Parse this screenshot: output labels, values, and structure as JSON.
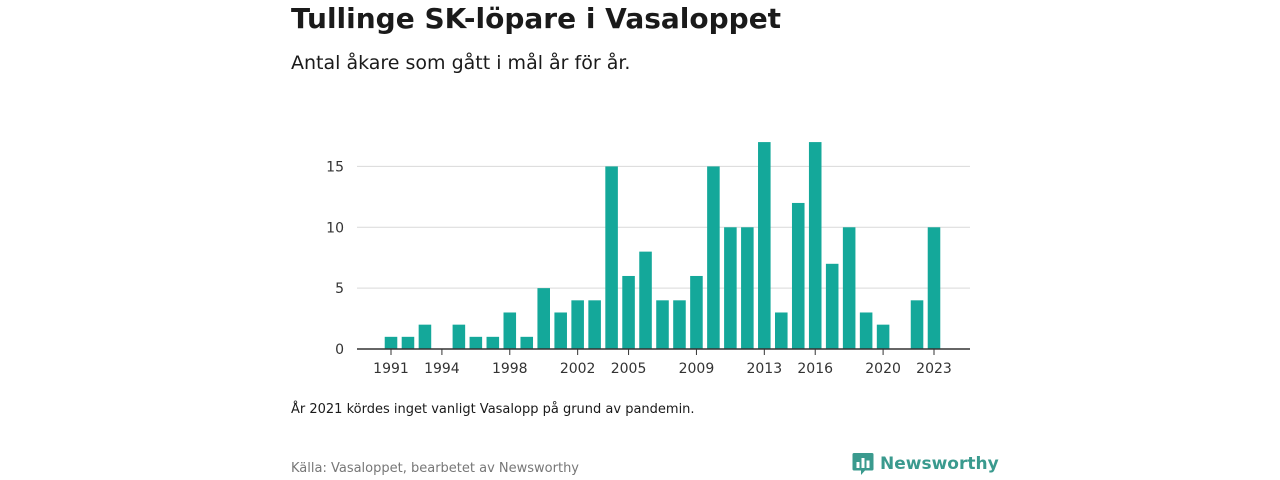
{
  "header": {
    "title": "Tullinge SK-löpare i Vasaloppet",
    "subtitle": "Antal åkare som gått i mål år för år."
  },
  "footer": {
    "note": "År 2021 kördes inget vanligt Vasalopp på grund av pandemin.",
    "source": "Källa: Vasaloppet, bearbetet av Newsworthy",
    "brand": "Newsworthy"
  },
  "colors": {
    "bar": "#14a89a",
    "grid": "#d9d9d9",
    "axis": "#333333",
    "brand": "#3a9a8e"
  },
  "chart_data": {
    "type": "bar",
    "title": "Tullinge SK-löpare i Vasaloppet",
    "subtitle": "Antal åkare som gått i mål år för år.",
    "xlabel": "",
    "ylabel": "",
    "categories": [
      1991,
      1992,
      1993,
      1994,
      1995,
      1996,
      1997,
      1998,
      1999,
      2000,
      2001,
      2002,
      2003,
      2004,
      2005,
      2006,
      2007,
      2008,
      2009,
      2010,
      2011,
      2012,
      2013,
      2014,
      2015,
      2016,
      2017,
      2018,
      2019,
      2020,
      2021,
      2022,
      2023
    ],
    "values": [
      1,
      1,
      2,
      0,
      2,
      1,
      1,
      3,
      1,
      5,
      3,
      4,
      4,
      15,
      6,
      8,
      4,
      4,
      6,
      15,
      10,
      10,
      17,
      3,
      12,
      17,
      7,
      10,
      3,
      2,
      0,
      4,
      10
    ],
    "x_ticks": [
      1991,
      1994,
      1998,
      2002,
      2005,
      2009,
      2013,
      2016,
      2020,
      2023
    ],
    "y_ticks": [
      0,
      5,
      10,
      15
    ],
    "ylim": [
      0,
      17.5
    ],
    "grid": true,
    "legend": "none"
  }
}
